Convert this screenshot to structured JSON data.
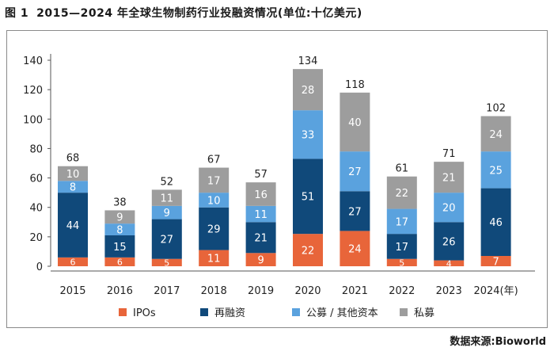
{
  "figure": {
    "number": "图 1",
    "title": "2015—2024 年全球生物制药行业投融资情况(单位:十亿美元)",
    "source": "数据来源:Bioworld"
  },
  "chart_data": {
    "type": "bar",
    "stacked": true,
    "title": "2015—2024 年全球生物制药行业投融资情况(单位:十亿美元)",
    "unit": "十亿美元",
    "categories": [
      "2015",
      "2016",
      "2017",
      "2018",
      "2019",
      "2020",
      "2021",
      "2022",
      "2023",
      "2024(年)"
    ],
    "series": [
      {
        "name": "IPOs",
        "color": "#e8653a",
        "values": [
          6,
          6,
          5,
          11,
          9,
          22,
          24,
          5,
          4,
          7
        ]
      },
      {
        "name": "再融资",
        "color": "#10497a",
        "values": [
          44,
          15,
          27,
          29,
          21,
          51,
          27,
          17,
          26,
          46
        ]
      },
      {
        "name": "公募 / 其他资本",
        "color": "#5aa2de",
        "values": [
          8,
          8,
          9,
          10,
          11,
          33,
          27,
          17,
          20,
          25
        ]
      },
      {
        "name": "私募",
        "color": "#9d9d9d",
        "values": [
          10,
          9,
          11,
          17,
          16,
          28,
          40,
          22,
          21,
          24
        ]
      }
    ],
    "totals": [
      68,
      38,
      52,
      67,
      57,
      134,
      118,
      61,
      71,
      102
    ],
    "yticks": [
      0,
      20,
      40,
      60,
      80,
      100,
      120,
      140
    ],
    "ylim": [
      0,
      140
    ],
    "legend_position": "bottom",
    "xlabel": "",
    "ylabel": ""
  }
}
